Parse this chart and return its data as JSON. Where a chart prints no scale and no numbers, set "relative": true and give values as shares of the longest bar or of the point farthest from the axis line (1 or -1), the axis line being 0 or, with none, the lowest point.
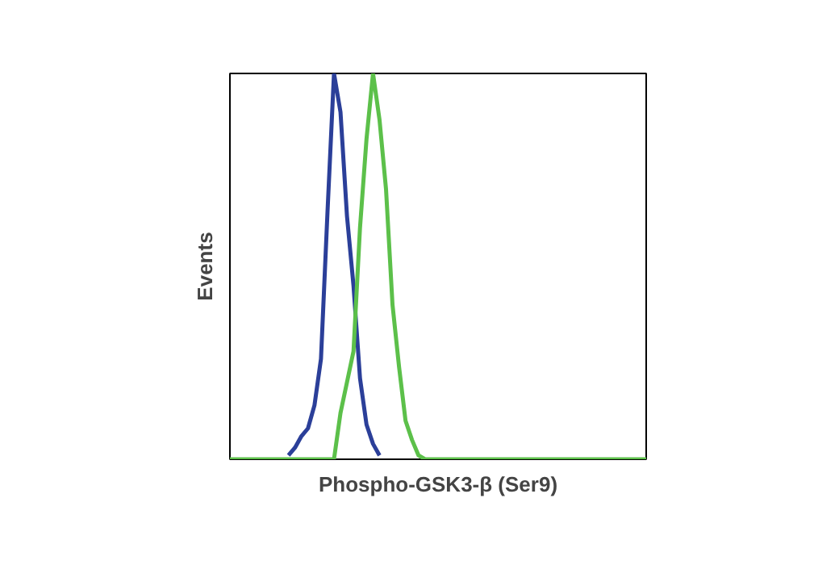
{
  "chart_data": {
    "type": "line",
    "relative": true,
    "xlabel": "Phospho-GSK3-β (Ser9)",
    "ylabel": "Events",
    "categories": [
      null,
      null,
      null,
      null,
      null,
      null,
      null,
      null,
      null,
      null,
      null,
      null,
      null,
      null,
      null,
      null,
      null,
      null,
      null,
      null,
      null,
      null,
      null,
      null,
      null,
      null,
      null,
      null,
      null,
      null,
      null,
      null,
      null,
      null,
      null,
      null,
      null,
      null,
      null,
      null,
      null,
      null,
      null,
      null,
      null,
      null,
      null,
      null,
      null,
      null,
      null,
      null,
      null,
      null,
      null,
      null,
      null,
      null,
      null,
      null,
      null,
      null,
      null,
      null,
      null
    ],
    "series": [
      {
        "color": "#2b3f99",
        "values": [
          null,
          null,
          null,
          null,
          null,
          null,
          null,
          null,
          null,
          0.01,
          0.03,
          0.06,
          0.08,
          0.14,
          0.26,
          0.64,
          1.0,
          0.9,
          0.63,
          0.45,
          0.21,
          0.09,
          0.04,
          0.01,
          null,
          null,
          null,
          null,
          null,
          null,
          null,
          null,
          null,
          null,
          null,
          null,
          null,
          null,
          null,
          null,
          null,
          null,
          null,
          null,
          null,
          null,
          null,
          null,
          null,
          null,
          null,
          null,
          null,
          null,
          null,
          null,
          null,
          null,
          null,
          null,
          null,
          null,
          null,
          null,
          null
        ]
      },
      {
        "color": "#5cc04a",
        "values": [
          0,
          0,
          0,
          0,
          0,
          0,
          0,
          0,
          0,
          0,
          0,
          0,
          0,
          0,
          0,
          0,
          0,
          0.12,
          0.2,
          0.28,
          0.6,
          0.83,
          1.0,
          0.88,
          0.7,
          0.4,
          0.24,
          0.1,
          0.05,
          0.01,
          0,
          0,
          0,
          0,
          0,
          0,
          0,
          0,
          0,
          0,
          0,
          0,
          0,
          0,
          0,
          0,
          0,
          0,
          0,
          0,
          0,
          0,
          0,
          0,
          0,
          0,
          0,
          0,
          0,
          0,
          0,
          0,
          0,
          0,
          0
        ]
      }
    ]
  }
}
